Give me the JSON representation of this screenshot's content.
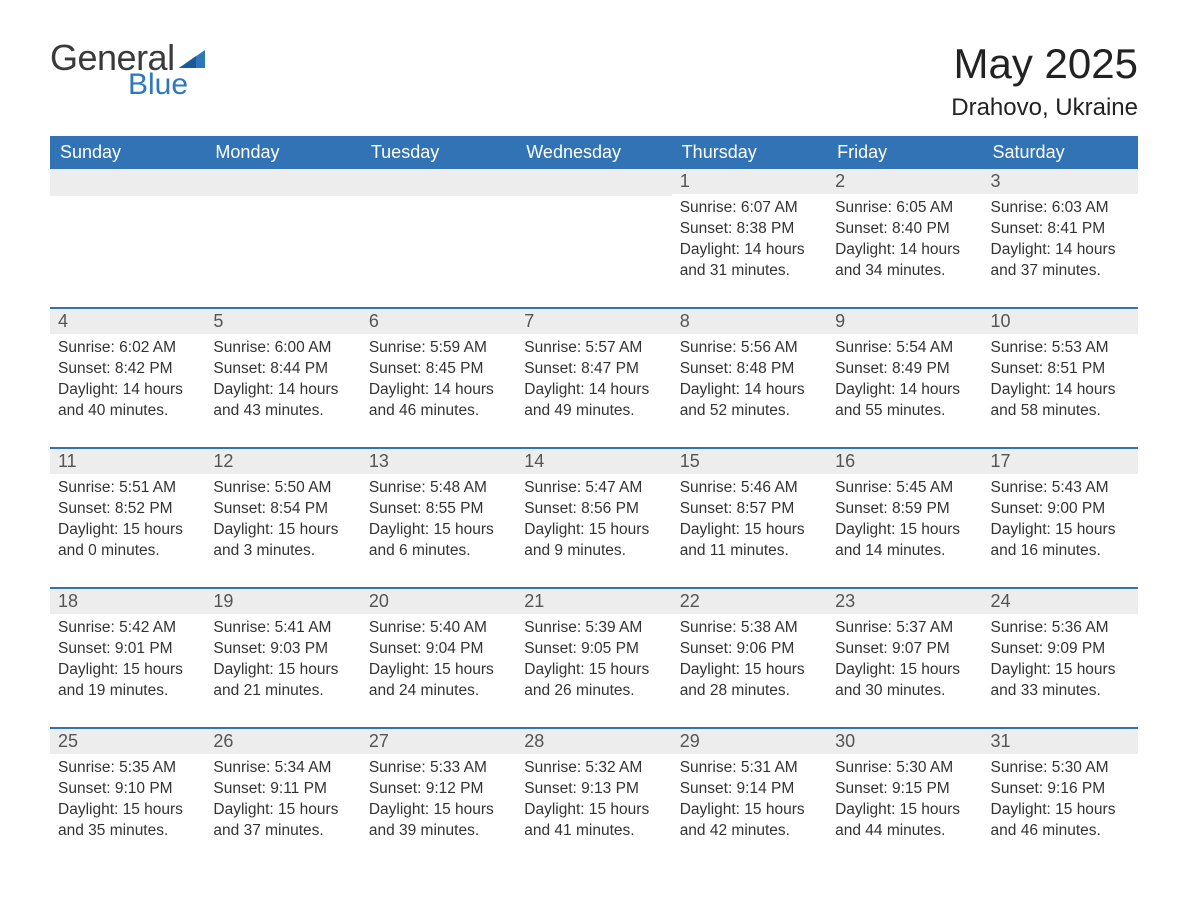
{
  "logo": {
    "word1": "General",
    "word2": "Blue"
  },
  "header": {
    "month_title": "May 2025",
    "location": "Drahovo, Ukraine"
  },
  "colors": {
    "header_bg": "#3173b5",
    "header_text": "#ffffff",
    "daynum_bg": "#ededed",
    "daynum_text": "#555555",
    "body_text": "#333333",
    "logo_blue": "#2d77bb",
    "row_border": "#3173b5",
    "page_bg": "#ffffff"
  },
  "typography": {
    "month_title_size": 42,
    "location_size": 24,
    "weekday_size": 18,
    "daynum_size": 18,
    "content_size": 15.5,
    "font_family": "Arial"
  },
  "weekdays": [
    "Sunday",
    "Monday",
    "Tuesday",
    "Wednesday",
    "Thursday",
    "Friday",
    "Saturday"
  ],
  "weeks": [
    [
      {
        "empty": true
      },
      {
        "empty": true
      },
      {
        "empty": true
      },
      {
        "empty": true
      },
      {
        "day": "1",
        "sunrise": "Sunrise: 6:07 AM",
        "sunset": "Sunset: 8:38 PM",
        "daylight": "Daylight: 14 hours and 31 minutes."
      },
      {
        "day": "2",
        "sunrise": "Sunrise: 6:05 AM",
        "sunset": "Sunset: 8:40 PM",
        "daylight": "Daylight: 14 hours and 34 minutes."
      },
      {
        "day": "3",
        "sunrise": "Sunrise: 6:03 AM",
        "sunset": "Sunset: 8:41 PM",
        "daylight": "Daylight: 14 hours and 37 minutes."
      }
    ],
    [
      {
        "day": "4",
        "sunrise": "Sunrise: 6:02 AM",
        "sunset": "Sunset: 8:42 PM",
        "daylight": "Daylight: 14 hours and 40 minutes."
      },
      {
        "day": "5",
        "sunrise": "Sunrise: 6:00 AM",
        "sunset": "Sunset: 8:44 PM",
        "daylight": "Daylight: 14 hours and 43 minutes."
      },
      {
        "day": "6",
        "sunrise": "Sunrise: 5:59 AM",
        "sunset": "Sunset: 8:45 PM",
        "daylight": "Daylight: 14 hours and 46 minutes."
      },
      {
        "day": "7",
        "sunrise": "Sunrise: 5:57 AM",
        "sunset": "Sunset: 8:47 PM",
        "daylight": "Daylight: 14 hours and 49 minutes."
      },
      {
        "day": "8",
        "sunrise": "Sunrise: 5:56 AM",
        "sunset": "Sunset: 8:48 PM",
        "daylight": "Daylight: 14 hours and 52 minutes."
      },
      {
        "day": "9",
        "sunrise": "Sunrise: 5:54 AM",
        "sunset": "Sunset: 8:49 PM",
        "daylight": "Daylight: 14 hours and 55 minutes."
      },
      {
        "day": "10",
        "sunrise": "Sunrise: 5:53 AM",
        "sunset": "Sunset: 8:51 PM",
        "daylight": "Daylight: 14 hours and 58 minutes."
      }
    ],
    [
      {
        "day": "11",
        "sunrise": "Sunrise: 5:51 AM",
        "sunset": "Sunset: 8:52 PM",
        "daylight": "Daylight: 15 hours and 0 minutes."
      },
      {
        "day": "12",
        "sunrise": "Sunrise: 5:50 AM",
        "sunset": "Sunset: 8:54 PM",
        "daylight": "Daylight: 15 hours and 3 minutes."
      },
      {
        "day": "13",
        "sunrise": "Sunrise: 5:48 AM",
        "sunset": "Sunset: 8:55 PM",
        "daylight": "Daylight: 15 hours and 6 minutes."
      },
      {
        "day": "14",
        "sunrise": "Sunrise: 5:47 AM",
        "sunset": "Sunset: 8:56 PM",
        "daylight": "Daylight: 15 hours and 9 minutes."
      },
      {
        "day": "15",
        "sunrise": "Sunrise: 5:46 AM",
        "sunset": "Sunset: 8:57 PM",
        "daylight": "Daylight: 15 hours and 11 minutes."
      },
      {
        "day": "16",
        "sunrise": "Sunrise: 5:45 AM",
        "sunset": "Sunset: 8:59 PM",
        "daylight": "Daylight: 15 hours and 14 minutes."
      },
      {
        "day": "17",
        "sunrise": "Sunrise: 5:43 AM",
        "sunset": "Sunset: 9:00 PM",
        "daylight": "Daylight: 15 hours and 16 minutes."
      }
    ],
    [
      {
        "day": "18",
        "sunrise": "Sunrise: 5:42 AM",
        "sunset": "Sunset: 9:01 PM",
        "daylight": "Daylight: 15 hours and 19 minutes."
      },
      {
        "day": "19",
        "sunrise": "Sunrise: 5:41 AM",
        "sunset": "Sunset: 9:03 PM",
        "daylight": "Daylight: 15 hours and 21 minutes."
      },
      {
        "day": "20",
        "sunrise": "Sunrise: 5:40 AM",
        "sunset": "Sunset: 9:04 PM",
        "daylight": "Daylight: 15 hours and 24 minutes."
      },
      {
        "day": "21",
        "sunrise": "Sunrise: 5:39 AM",
        "sunset": "Sunset: 9:05 PM",
        "daylight": "Daylight: 15 hours and 26 minutes."
      },
      {
        "day": "22",
        "sunrise": "Sunrise: 5:38 AM",
        "sunset": "Sunset: 9:06 PM",
        "daylight": "Daylight: 15 hours and 28 minutes."
      },
      {
        "day": "23",
        "sunrise": "Sunrise: 5:37 AM",
        "sunset": "Sunset: 9:07 PM",
        "daylight": "Daylight: 15 hours and 30 minutes."
      },
      {
        "day": "24",
        "sunrise": "Sunrise: 5:36 AM",
        "sunset": "Sunset: 9:09 PM",
        "daylight": "Daylight: 15 hours and 33 minutes."
      }
    ],
    [
      {
        "day": "25",
        "sunrise": "Sunrise: 5:35 AM",
        "sunset": "Sunset: 9:10 PM",
        "daylight": "Daylight: 15 hours and 35 minutes."
      },
      {
        "day": "26",
        "sunrise": "Sunrise: 5:34 AM",
        "sunset": "Sunset: 9:11 PM",
        "daylight": "Daylight: 15 hours and 37 minutes."
      },
      {
        "day": "27",
        "sunrise": "Sunrise: 5:33 AM",
        "sunset": "Sunset: 9:12 PM",
        "daylight": "Daylight: 15 hours and 39 minutes."
      },
      {
        "day": "28",
        "sunrise": "Sunrise: 5:32 AM",
        "sunset": "Sunset: 9:13 PM",
        "daylight": "Daylight: 15 hours and 41 minutes."
      },
      {
        "day": "29",
        "sunrise": "Sunrise: 5:31 AM",
        "sunset": "Sunset: 9:14 PM",
        "daylight": "Daylight: 15 hours and 42 minutes."
      },
      {
        "day": "30",
        "sunrise": "Sunrise: 5:30 AM",
        "sunset": "Sunset: 9:15 PM",
        "daylight": "Daylight: 15 hours and 44 minutes."
      },
      {
        "day": "31",
        "sunrise": "Sunrise: 5:30 AM",
        "sunset": "Sunset: 9:16 PM",
        "daylight": "Daylight: 15 hours and 46 minutes."
      }
    ]
  ]
}
